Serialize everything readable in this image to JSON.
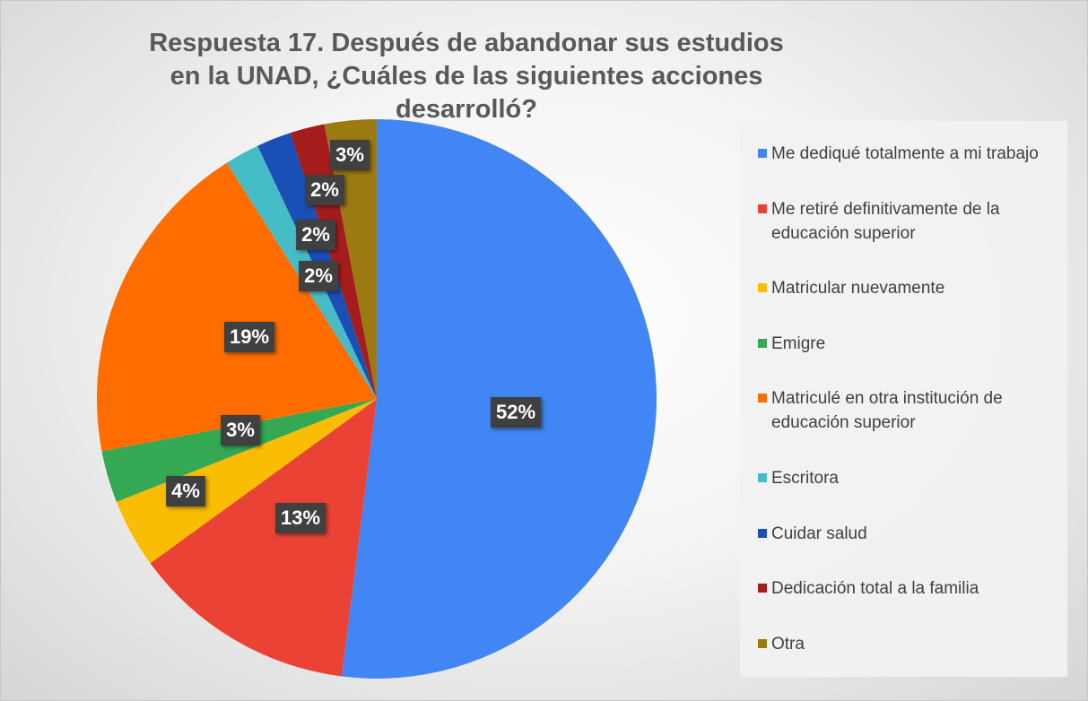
{
  "chart_data": {
    "type": "pie",
    "title": "Respuesta 17. Después de abandonar sus estudios en la UNAD, ¿Cuáles de las siguientes acciones desarrolló?",
    "categories": [
      "Me dediqué totalmente a mi trabajo",
      "Me retiré definitivamente de la educación superior",
      "Matricular nuevamente",
      "Emigre",
      "Matriculé en otra institución de educación superior",
      "Escritora",
      "Cuidar salud",
      "Dedicación total a la familia",
      "Otra"
    ],
    "values": [
      52,
      13,
      4,
      3,
      19,
      2,
      2,
      2,
      3
    ],
    "value_labels": [
      "52%",
      "13%",
      "4%",
      "3%",
      "19%",
      "2%",
      "2%",
      "2%",
      "3%"
    ],
    "colors": [
      "#4285f4",
      "#ea4335",
      "#fbbc04",
      "#34a853",
      "#ff6d01",
      "#46bdc6",
      "#1a4fb5",
      "#a51c1c",
      "#9c7a12"
    ],
    "legend": "right"
  }
}
